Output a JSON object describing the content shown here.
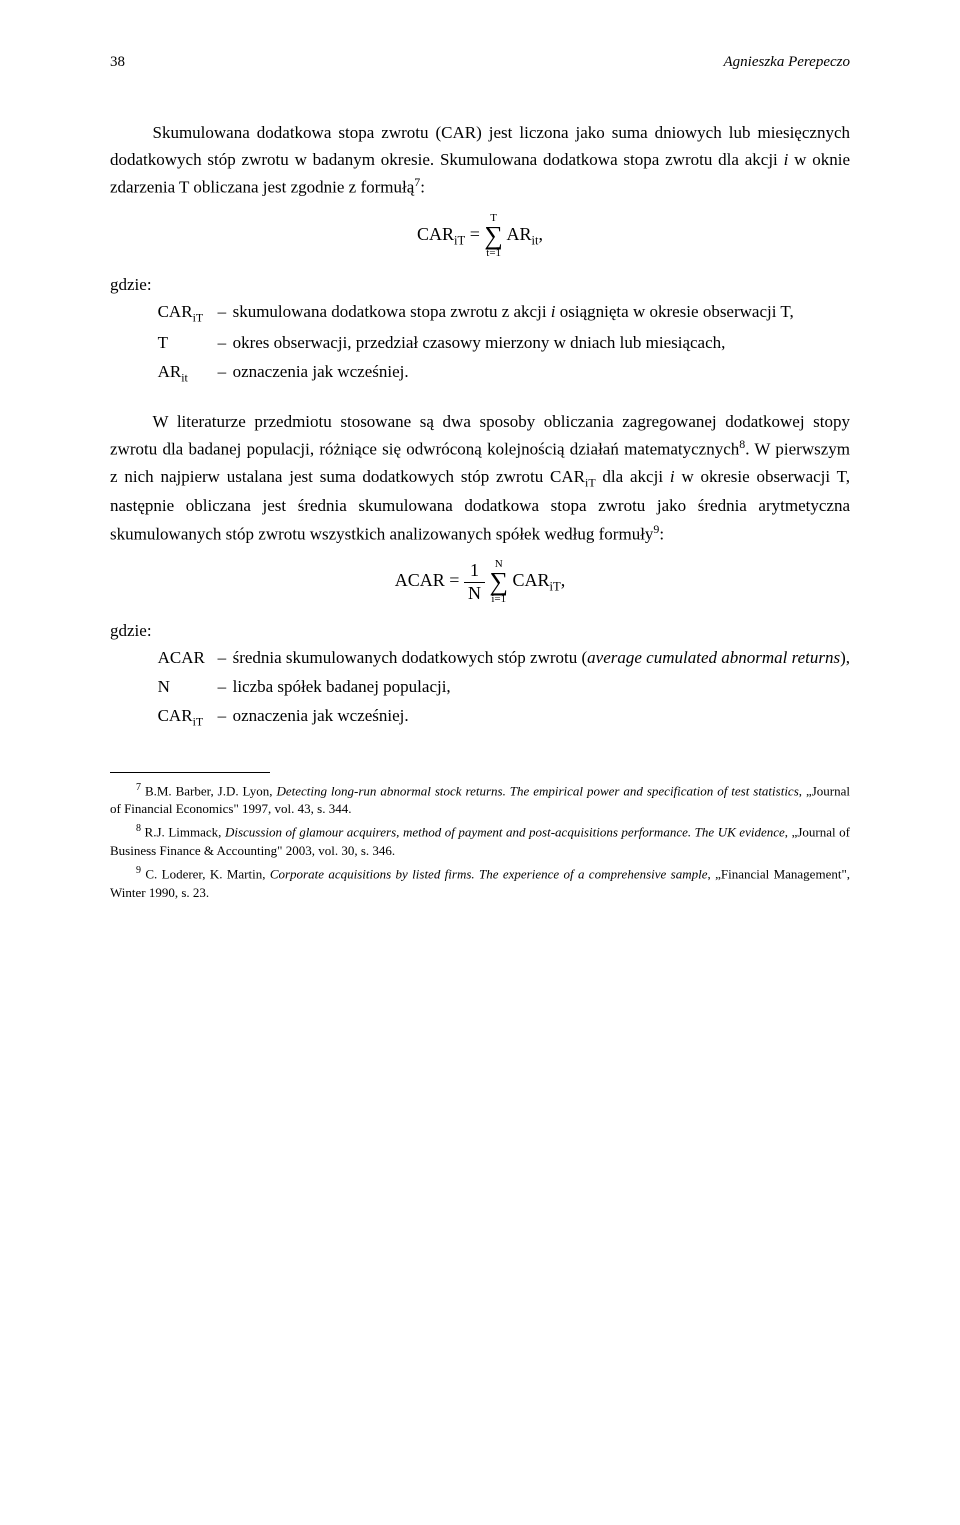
{
  "header": {
    "page_number": "38",
    "author": "Agnieszka Perepeczo"
  },
  "p1": "Skumulowana dodatkowa stopa zwrotu (CAR) jest liczona jako suma dniowych lub miesięcznych dodatkowych stóp zwrotu w badanym okresie. Skumulowana dodatkowa stopa zwrotu dla akcji ",
  "p1_i": "i",
  "p1_cont": " w oknie zdarzenia T obliczana jest zgodnie z formułą",
  "p1_sup": "7",
  "p1_end": ":",
  "formula1": {
    "lhs": "CAR",
    "lhs_sub": "iT",
    "eq": " = ",
    "sum_top": "T",
    "sum_bottom": "t=1",
    "rhs": "AR",
    "rhs_sub": "it",
    "comma": ","
  },
  "where1": "gdzie:",
  "defs1": [
    {
      "sym_html": "CAR<sub>iT</sub>",
      "dash": "–",
      "desc_pre": "skumulowana dodatkowa stopa zwrotu z akcji ",
      "desc_i": "i",
      "desc_post": " osiągnięta w okresie obserwacji T,"
    },
    {
      "sym_html": "T",
      "dash": "–",
      "desc_pre": "okres obserwacji, przedział czasowy mierzony w dniach lub miesiącach,",
      "desc_i": "",
      "desc_post": ""
    },
    {
      "sym_html": "AR<sub>it</sub>",
      "dash": "–",
      "desc_pre": "oznaczenia jak wcześniej.",
      "desc_i": "",
      "desc_post": ""
    }
  ],
  "p2": "W literaturze przedmiotu stosowane są dwa sposoby obliczania zagregowanej dodatkowej stopy zwrotu dla badanej populacji, różniące się odwróconą kolejnością działań matematycznych",
  "p2_sup": "8",
  "p2_mid": ". W pierwszym z nich najpierw ustalana jest suma dodatkowych stóp zwrotu CAR",
  "p2_sub": "iT",
  "p2_mid2": " dla akcji ",
  "p2_i": "i",
  "p2_mid3": " w okresie obserwacji T, następnie obliczana jest średnia skumulowana dodatkowa stopa zwrotu jako średnia arytmetyczna skumulowanych stóp zwrotu wszystkich analizowanych spółek według formuły",
  "p2_sup2": "9",
  "p2_end": ":",
  "formula2": {
    "lhs": "ACAR = ",
    "frac_num": "1",
    "frac_den": "N",
    "sum_top": "N",
    "sum_bottom": "i=1",
    "rhs": "CAR",
    "rhs_sub": "iT",
    "comma": ","
  },
  "where2": "gdzie:",
  "defs2": [
    {
      "sym_html": "ACAR",
      "dash": "–",
      "desc_pre": "średnia skumulowanych dodatkowych stóp zwrotu (",
      "desc_i": "average cumulated abnormal returns",
      "desc_post": "),"
    },
    {
      "sym_html": "N",
      "dash": "–",
      "desc_pre": "liczba spółek badanej populacji,",
      "desc_i": "",
      "desc_post": ""
    },
    {
      "sym_html": "CAR<sub>iT</sub>",
      "dash": "–",
      "desc_pre": "oznaczenia jak wcześniej.",
      "desc_i": "",
      "desc_post": ""
    }
  ],
  "footnotes": [
    {
      "num": "7",
      "text_parts": [
        {
          "t": " B.M. Barber, J.D. Lyon, ",
          "i": false
        },
        {
          "t": "Detecting long-run abnormal stock returns. The empirical power and specification of test statistics",
          "i": true
        },
        {
          "t": ", „Journal of Financial Economics\" 1997, vol. 43, s. 344.",
          "i": false
        }
      ]
    },
    {
      "num": "8",
      "text_parts": [
        {
          "t": " R.J. Limmack, ",
          "i": false
        },
        {
          "t": "Discussion of glamour acquirers, method of payment and post-acquisitions performance. The UK evidence",
          "i": true
        },
        {
          "t": ", „Journal of Business Finance & Accounting\" 2003, vol. 30, s. 346.",
          "i": false
        }
      ]
    },
    {
      "num": "9",
      "text_parts": [
        {
          "t": " C. Loderer, K. Martin, ",
          "i": false
        },
        {
          "t": "Corporate acquisitions by listed firms. The experience of a comprehensive sample",
          "i": true
        },
        {
          "t": ", „Financial Management\", Winter 1990, s. 23.",
          "i": false
        }
      ]
    }
  ]
}
